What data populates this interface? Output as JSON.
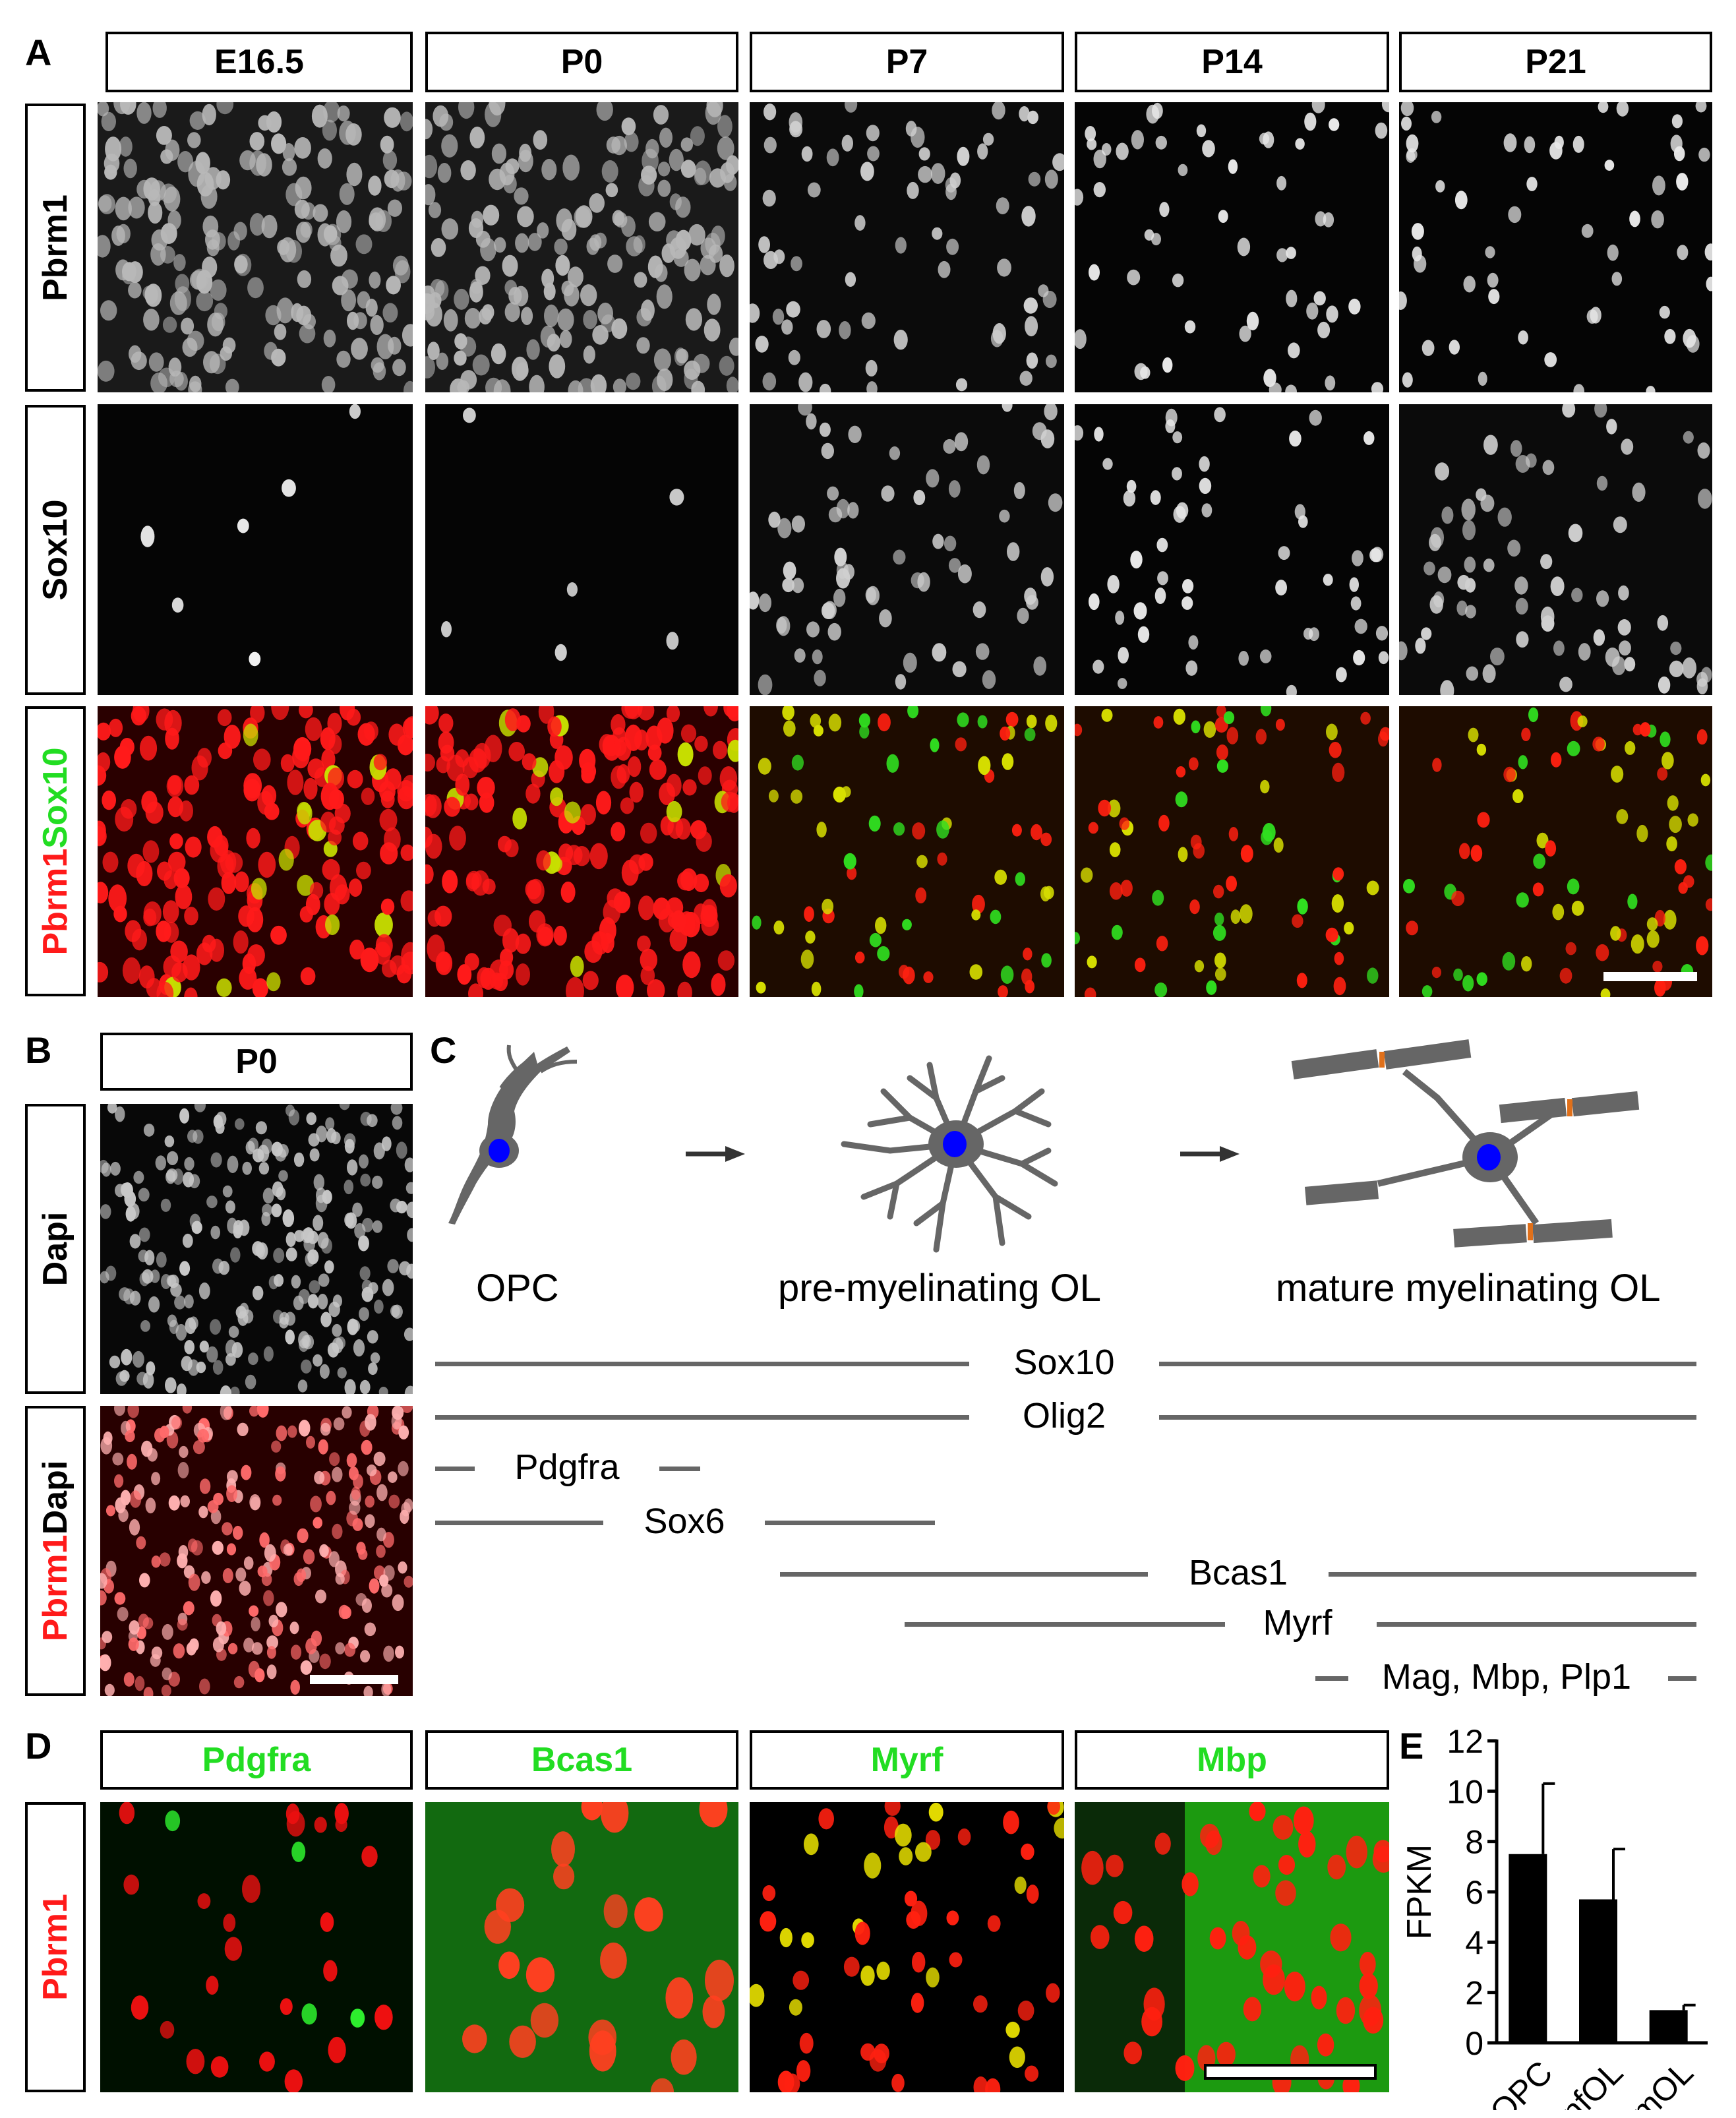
{
  "panel_labels": {
    "a": "A",
    "b": "B",
    "c": "C",
    "d": "D",
    "e": "E"
  },
  "panel_a": {
    "columns": [
      "E16.5",
      "P0",
      "P7",
      "P14",
      "P21"
    ],
    "rows": {
      "pbrm1": "Pbrm1",
      "sox10": "Sox10",
      "merge_red": "Pbrm1",
      "merge_green": "Sox10"
    }
  },
  "panel_b": {
    "column": "P0",
    "rows": {
      "dapi": "Dapi",
      "merge_red": "Pbrm1",
      "merge_white": "Dapi"
    }
  },
  "panel_c": {
    "stages": [
      "OPC",
      "pre-myelinating OL",
      "mature myelinating OL"
    ],
    "markers": [
      "Sox10",
      "Olig2",
      "Pdgfra",
      "Sox6",
      "Bcas1",
      "Myrf",
      "Mag, Mbp, Plp1"
    ],
    "colors": {
      "cell": "#666666",
      "nucleus": "#0000ff",
      "node": "#e0701a",
      "line": "#666666"
    }
  },
  "panel_d": {
    "columns": [
      "Pdgfra",
      "Bcas1",
      "Myrf",
      "Mbp"
    ],
    "row": "Pbrm1",
    "colors": {
      "green": "#22dd22",
      "red": "#ff1a1a"
    }
  },
  "chart_data": {
    "type": "bar",
    "categories": [
      "OPC",
      "nfOL",
      "mOL"
    ],
    "values": [
      7.5,
      5.7,
      1.3
    ],
    "errors": [
      2.8,
      2.0,
      0.2
    ],
    "xlabel": "",
    "ylabel": "FPKM",
    "ylim": [
      0,
      12
    ],
    "yticks": [
      "0",
      "2",
      "4",
      "6",
      "8",
      "10",
      "12"
    ],
    "bar_color": "#000000",
    "grid": false
  }
}
